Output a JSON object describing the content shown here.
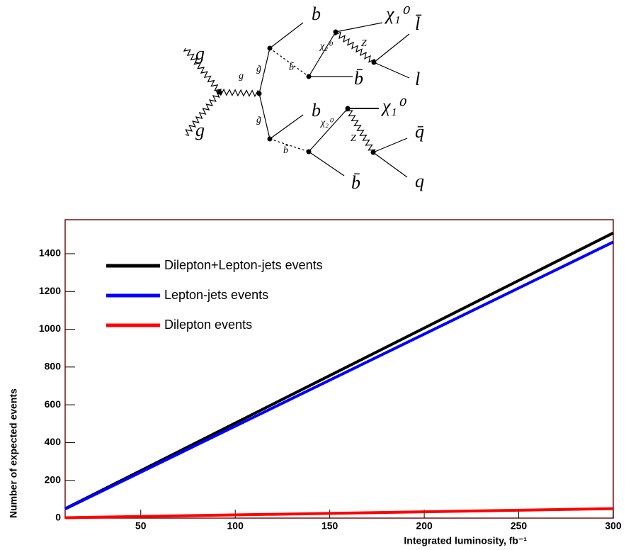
{
  "diagram": {
    "labels": [
      "g",
      "g",
      "g",
      "g̃",
      "g̃",
      "b̃",
      "b̃",
      "b",
      "b",
      "b̄",
      "b̄",
      "χ₂⁰",
      "χ₂⁰",
      "χ₁⁰",
      "χ₁⁰",
      "Z",
      "Z",
      "l̄",
      "l",
      "q̄",
      "q"
    ]
  },
  "chart_data": {
    "type": "line",
    "x_label": "Integrated luminosity, fb⁻¹",
    "y_label": "Number of expected events",
    "xlim": [
      10,
      300
    ],
    "ylim": [
      0,
      1580
    ],
    "xticks": [
      50,
      100,
      150,
      200,
      250,
      300
    ],
    "yticks": [
      0,
      200,
      400,
      600,
      800,
      1000,
      1200,
      1400
    ],
    "legend": "upper left",
    "x": [
      10,
      300
    ],
    "series": [
      {
        "name": "Dilepton+Lepton-jets events",
        "color": "#000000",
        "values": [
          50,
          1510
        ]
      },
      {
        "name": "Lepton-jets events",
        "color": "#0000ff",
        "values": [
          48,
          1462
        ]
      },
      {
        "name": "Dilepton events",
        "color": "#ff0000",
        "values": [
          2,
          50
        ]
      }
    ]
  }
}
